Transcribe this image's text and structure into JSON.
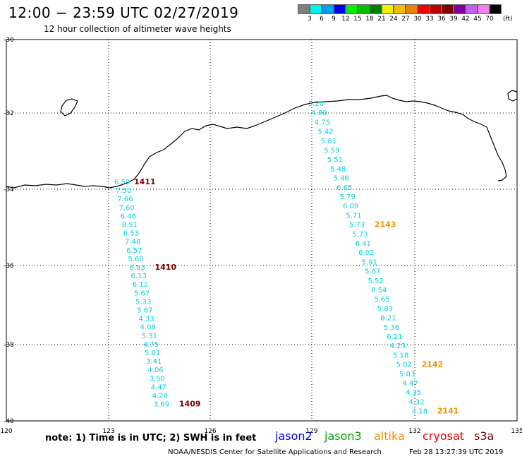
{
  "title": "12:00 − 23:59 UTC 02/27/2019",
  "subtitle": "12 hour collection of altimeter wave heights",
  "colorbar": {
    "colors": [
      "#7f7f7f",
      "#00f0f0",
      "#00a0f0",
      "#0000f0",
      "#00f000",
      "#00c000",
      "#008000",
      "#f0f000",
      "#f0c000",
      "#f08000",
      "#f00000",
      "#c00000",
      "#800000",
      "#8000a0",
      "#c060f0",
      "#f080f0",
      "#000000"
    ],
    "labels": [
      "3",
      "6",
      "9",
      "12",
      "15",
      "18",
      "21",
      "24",
      "27",
      "30",
      "33",
      "36",
      "39",
      "42",
      "45",
      "70"
    ],
    "unit": "(ft)"
  },
  "axes": {
    "lat_labels": [
      "-30",
      "-32",
      "-34",
      "-36",
      "-38",
      "-40"
    ],
    "lon_labels": [
      "120",
      "123",
      "126",
      "129",
      "132",
      "135"
    ]
  },
  "tracks": [
    {
      "values": [
        "6.59",
        "7.50",
        "7.66",
        "7.60",
        "6.48",
        "8.51",
        "6.53",
        "7.48",
        "6.57",
        "5.60",
        "6.83",
        "6.13",
        "6.12",
        "5.67",
        "5.33",
        "5.67",
        "4.33",
        "4.08",
        "5.31",
        "4.75",
        "5.01",
        "3.41",
        "4.06",
        "3.50",
        "4.47",
        "4.20",
        "3.69"
      ],
      "times": [
        {
          "text": "1411",
          "color": "#800000"
        },
        {
          "text": "1410",
          "color": "#800000"
        },
        {
          "text": "1409",
          "color": "#800000"
        }
      ]
    },
    {
      "values": [
        "5.20",
        "4.80",
        "4.75",
        "5.42",
        "5.81",
        "5.59",
        "5.51",
        "5.48",
        "5.46",
        "6.65",
        "5.79",
        "6.09",
        "5.71",
        "5.73",
        "5.73",
        "6.41",
        "6.02",
        "5.91",
        "5.67",
        "5.52",
        "8.54",
        "5.65",
        "5.83",
        "6.21",
        "5.36",
        "6.21",
        "4.23",
        "5.18",
        "5.02",
        "5.03",
        "4.47",
        "4.35",
        "4.32",
        "4.18"
      ],
      "times": [
        {
          "text": "2143",
          "color": "#f09000"
        },
        {
          "text": "2142",
          "color": "#f09000"
        },
        {
          "text": "2141",
          "color": "#f09000"
        }
      ]
    }
  ],
  "footer": {
    "note": "note:  1) Time is in UTC;  2) SWH is in feet",
    "legend": [
      {
        "name": "jason2",
        "color": "#0000f0"
      },
      {
        "name": "jason3",
        "color": "#00a000"
      },
      {
        "name": "altika",
        "color": "#f09000"
      },
      {
        "name": "cryosat",
        "color": "#f00000"
      },
      {
        "name": "s3a",
        "color": "#800000"
      }
    ],
    "credit": "NOAA/NESDIS Center for Satellite Applications and Research",
    "timestamp": "Feb 28 13:27:39 UTC 2019"
  }
}
